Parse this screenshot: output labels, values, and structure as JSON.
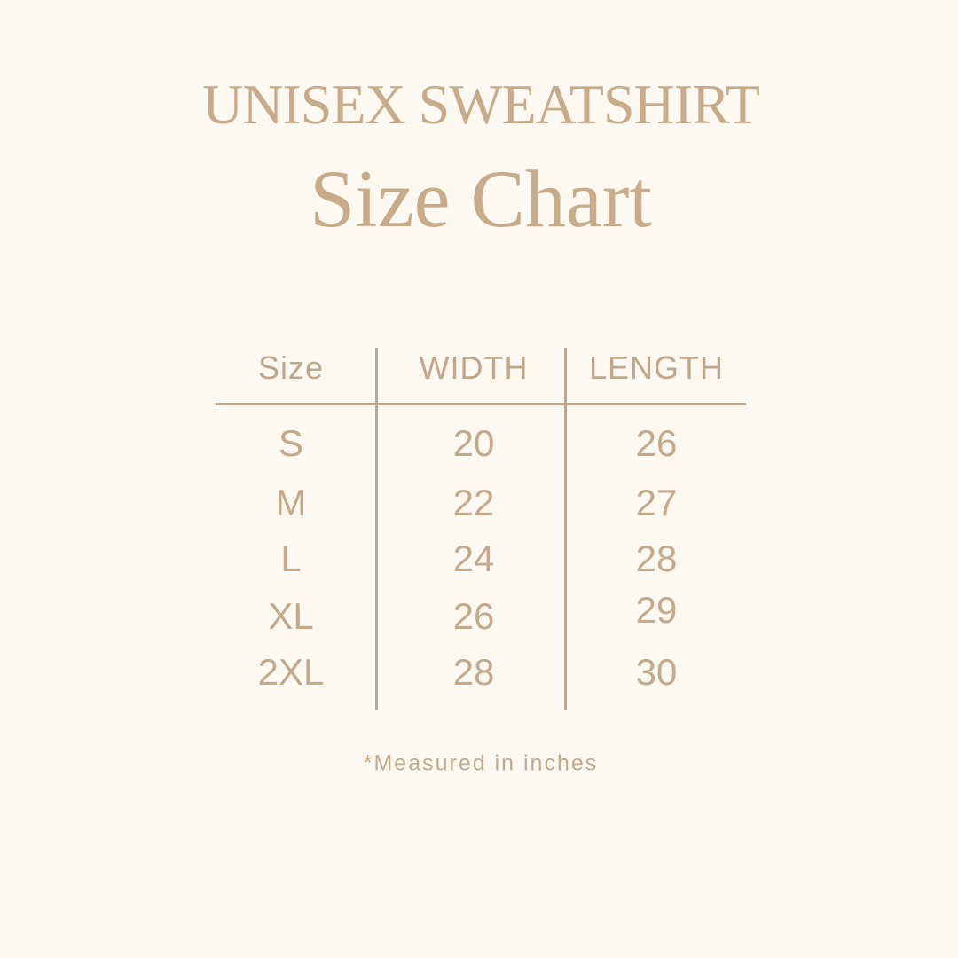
{
  "title": "UNISEX SWEATSHIRT",
  "subtitle": "Size Chart",
  "table": {
    "headers": [
      "Size",
      "WIDTH",
      "LENGTH"
    ],
    "rows": [
      [
        "S",
        "20",
        "26"
      ],
      [
        "M",
        "22",
        "27"
      ],
      [
        "L",
        "24",
        "28"
      ],
      [
        "XL",
        "26",
        "29"
      ],
      [
        "2XL",
        "28",
        "30"
      ]
    ]
  },
  "footnote": "*Measured in inches",
  "colors": {
    "background": "#fdf8f0",
    "text": "#c4a98a",
    "lines": "#bca793"
  }
}
